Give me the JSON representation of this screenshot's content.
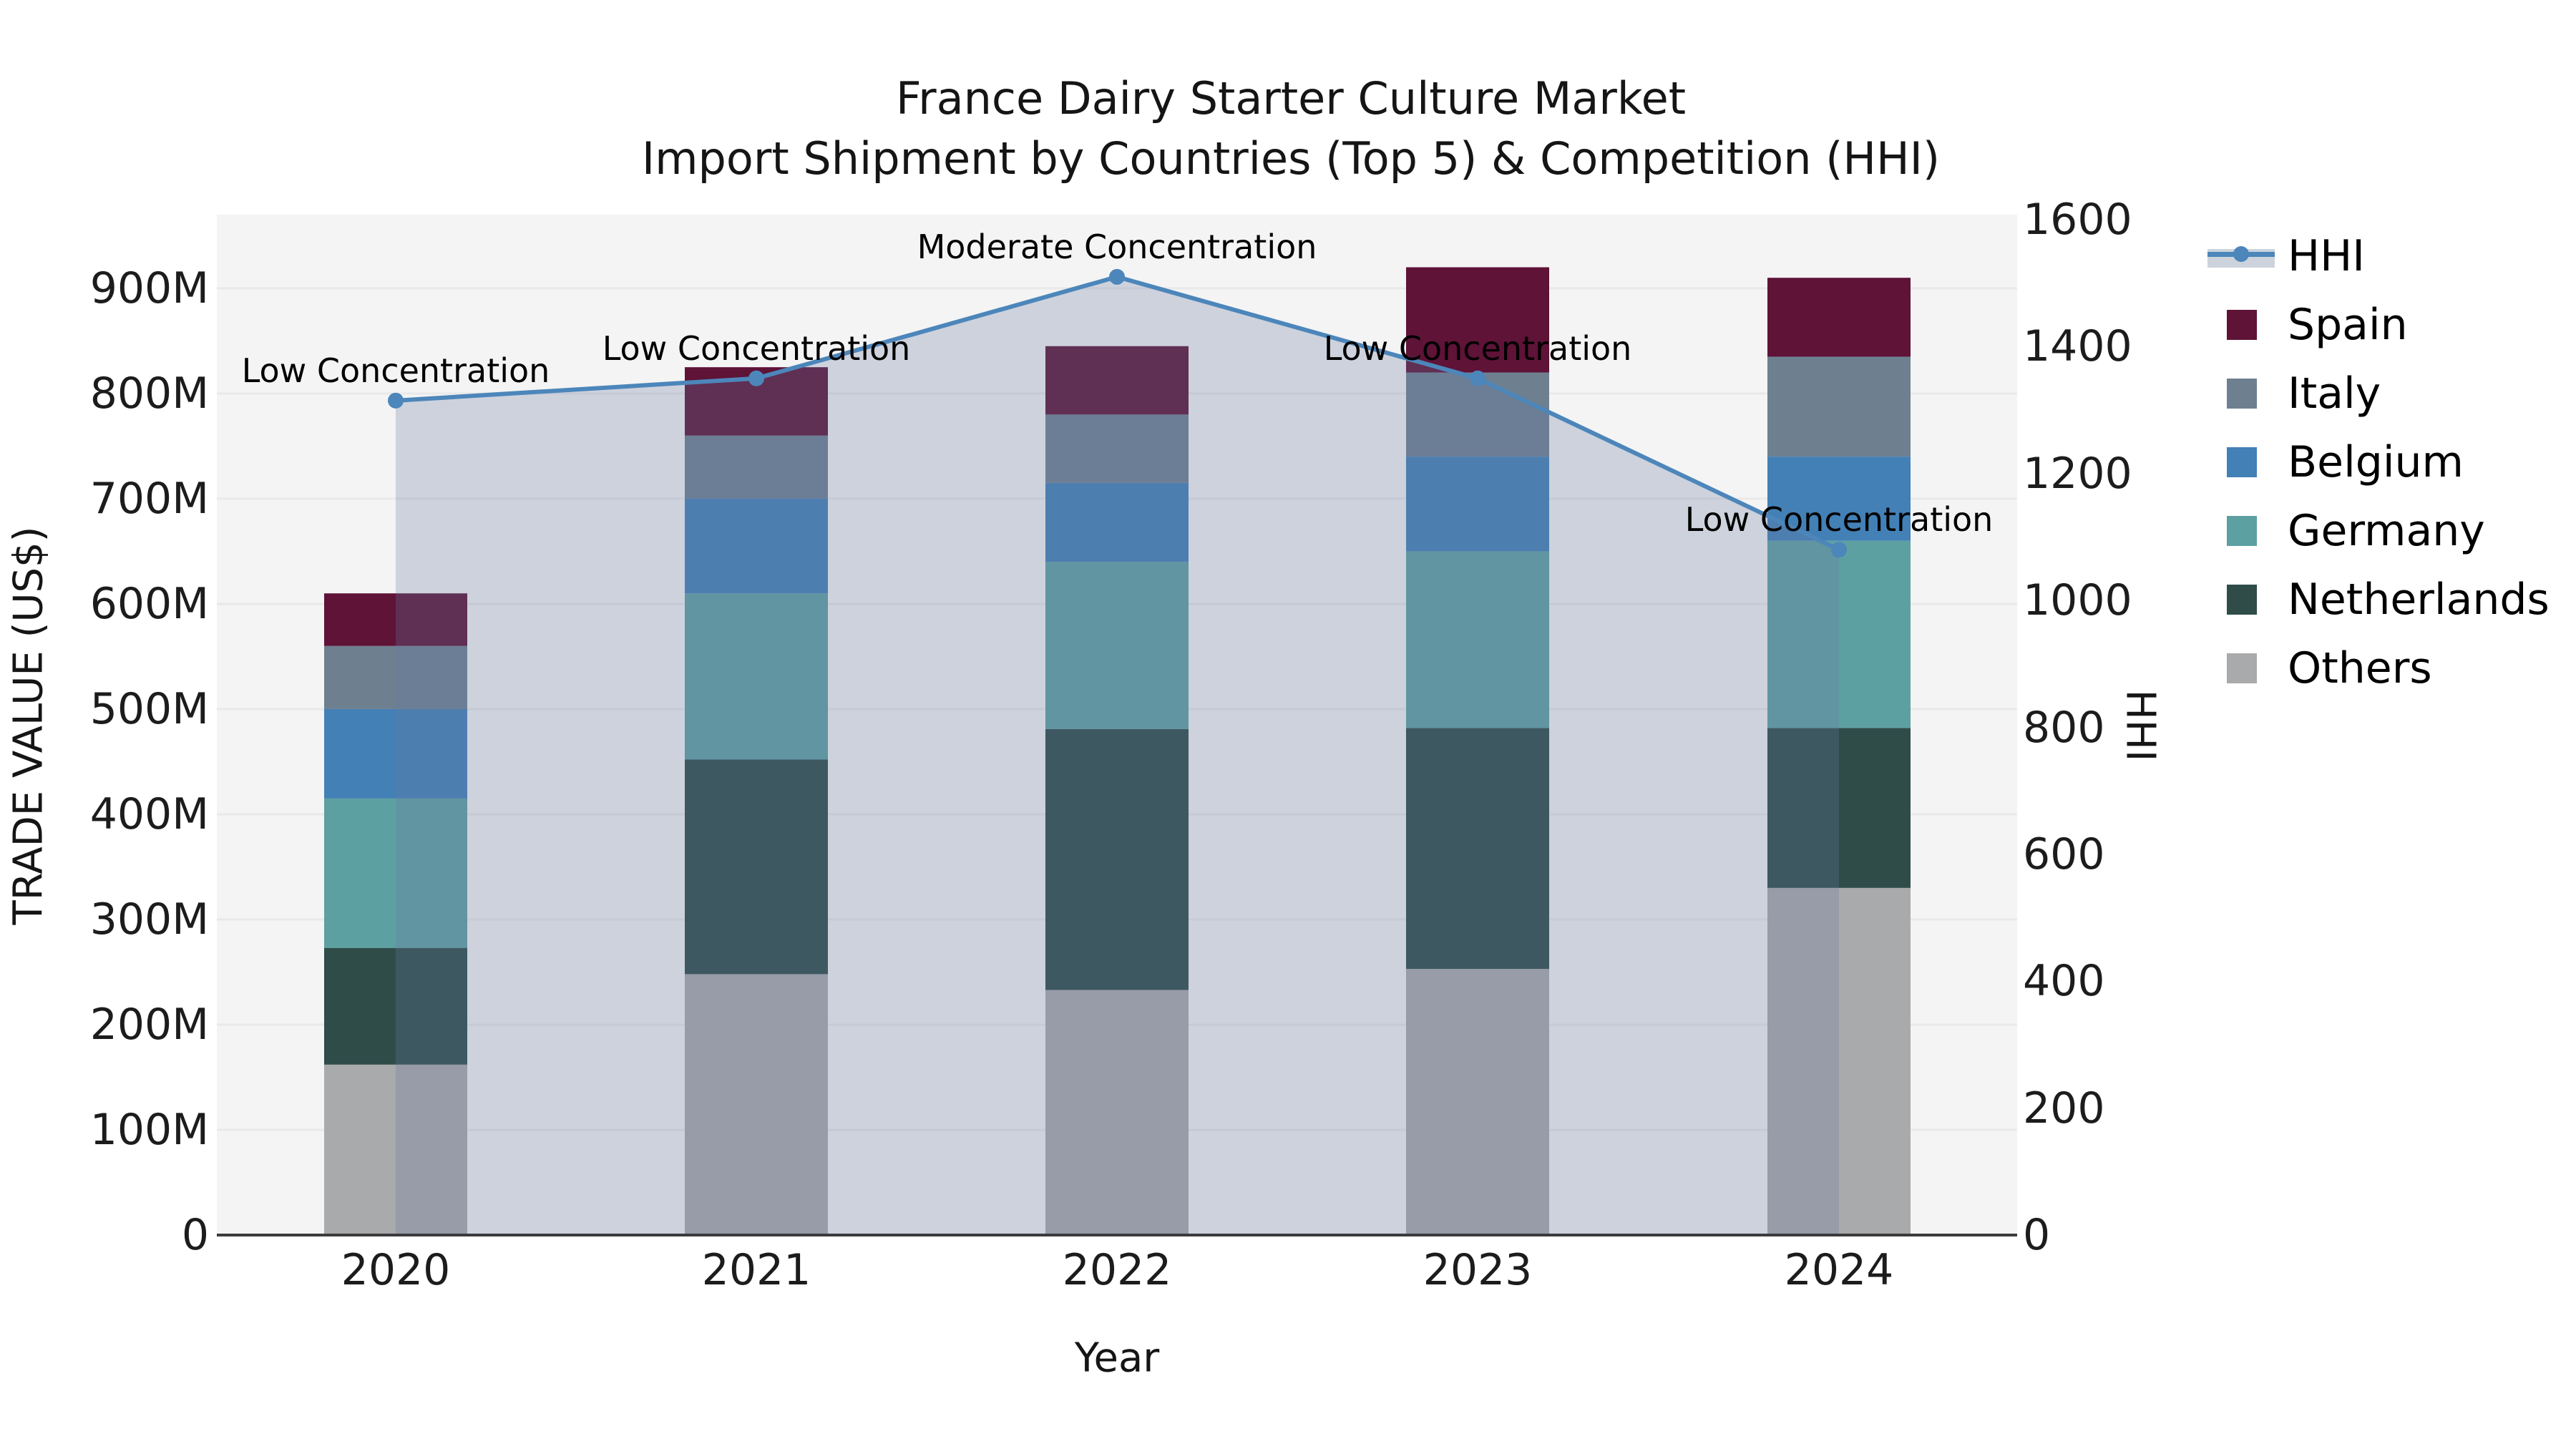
{
  "title": {
    "line1": "France Dairy Starter Culture Market",
    "line2": "Import Shipment by Countries (Top 5) & Competition (HHI)"
  },
  "axes": {
    "x_label": "Year",
    "y_left_label": "TRADE VALUE (US$)",
    "y_right_label": "HHI",
    "x_ticks": [
      "2020",
      "2021",
      "2022",
      "2023",
      "2024"
    ],
    "y_left_ticks": [
      "0",
      "100M",
      "200M",
      "300M",
      "400M",
      "500M",
      "600M",
      "700M",
      "800M",
      "900M"
    ],
    "y_left_tick_values": [
      0,
      100,
      200,
      300,
      400,
      500,
      600,
      700,
      800,
      900
    ],
    "y_right_ticks": [
      "0",
      "200",
      "400",
      "600",
      "800",
      "1000",
      "1200",
      "1400",
      "1600"
    ],
    "y_right_tick_values": [
      0,
      200,
      400,
      600,
      800,
      1000,
      1200,
      1400,
      1600
    ]
  },
  "legend": {
    "items": [
      {
        "label": "HHI",
        "type": "line",
        "color": "#4c86ba",
        "band_color": "#ccd3dc"
      },
      {
        "label": "Spain",
        "type": "patch",
        "color": "#5e1337"
      },
      {
        "label": "Italy",
        "type": "patch",
        "color": "#6e8090"
      },
      {
        "label": "Belgium",
        "type": "patch",
        "color": "#4380b6"
      },
      {
        "label": "Germany",
        "type": "patch",
        "color": "#5da0a1"
      },
      {
        "label": "Netherlands",
        "type": "patch",
        "color": "#2f4c49"
      },
      {
        "label": "Others",
        "type": "patch",
        "color": "#a9aaab"
      }
    ]
  },
  "chart_data": {
    "type": "combo-stacked-bar-line",
    "title": "France Dairy Starter Culture Market — Import Shipment by Countries (Top 5) & Competition (HHI)",
    "xlabel": "Year",
    "ylabel_left": "TRADE VALUE (US$)",
    "ylabel_right": "HHI",
    "unit": "US$ millions",
    "categories": [
      "2020",
      "2021",
      "2022",
      "2023",
      "2024"
    ],
    "series": [
      {
        "name": "Others",
        "values": [
          162,
          248,
          233,
          253,
          330
        ],
        "color": "#a9aaab"
      },
      {
        "name": "Netherlands",
        "values": [
          111,
          204,
          248,
          229,
          152
        ],
        "color": "#2f4c49"
      },
      {
        "name": "Germany",
        "values": [
          142,
          158,
          159,
          168,
          178
        ],
        "color": "#5da0a1"
      },
      {
        "name": "Belgium",
        "values": [
          85,
          90,
          75,
          90,
          80
        ],
        "color": "#4380b6"
      },
      {
        "name": "Italy",
        "values": [
          60,
          60,
          65,
          80,
          95
        ],
        "color": "#6e8090"
      },
      {
        "name": "Spain",
        "values": [
          50,
          65,
          65,
          100,
          75
        ],
        "color": "#5e1337"
      }
    ],
    "stack_totals": [
      610,
      825,
      845,
      920,
      910
    ],
    "hhi": {
      "name": "HHI",
      "values": [
        1315,
        1350,
        1510,
        1350,
        1080
      ],
      "line_color": "#4c86ba",
      "fill_color": "rgba(104,122,160,0.28)",
      "annotations": [
        "Low Concentration",
        "Low Concentration",
        "Moderate Concentration",
        "Low Concentration",
        "Low Concentration"
      ]
    },
    "y_left_range": [
      0,
      970
    ],
    "y_right_range": [
      0,
      1608
    ],
    "grid": true,
    "plot_bg_color": "#f4f4f4",
    "gridline_color": "#e9e9e9",
    "spine_color": "#3c3c3c",
    "legend_position": "right"
  }
}
